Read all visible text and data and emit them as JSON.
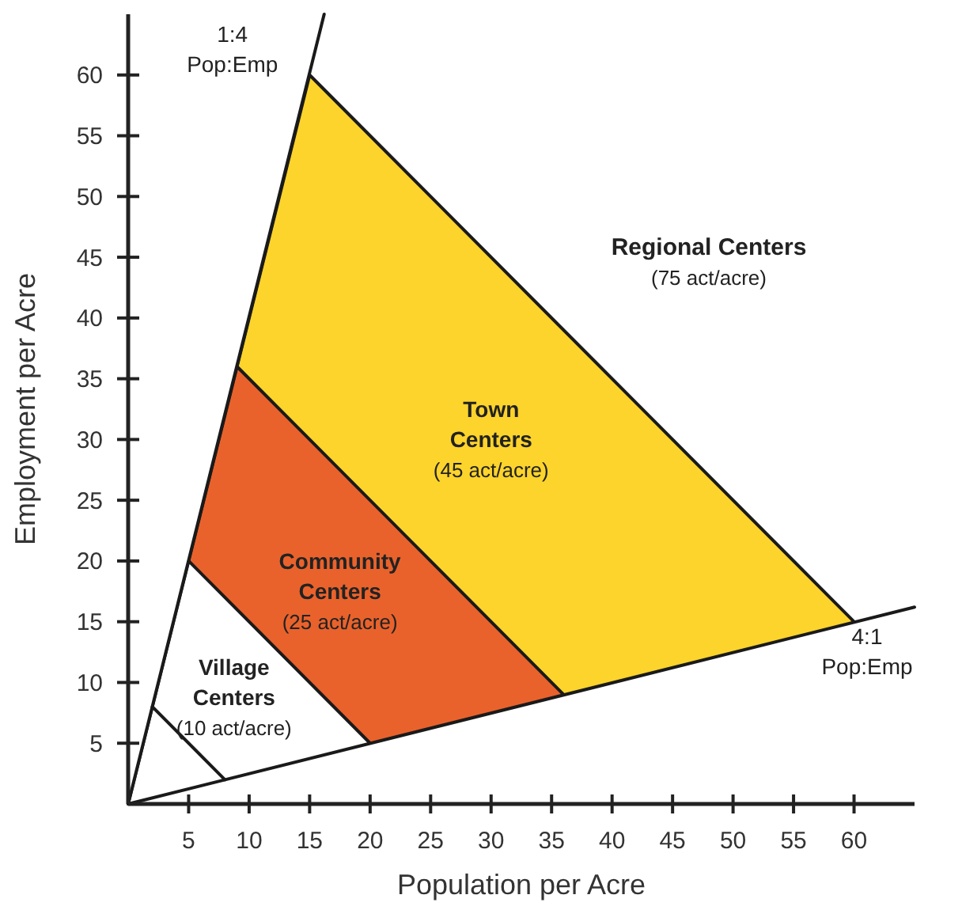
{
  "chart_data": {
    "type": "area",
    "xlabel": "Population per Acre",
    "ylabel": "Employment per Acre",
    "xlim": [
      0,
      65
    ],
    "ylim": [
      0,
      65
    ],
    "xticks": [
      5,
      10,
      15,
      20,
      25,
      30,
      35,
      40,
      45,
      50,
      55,
      60
    ],
    "yticks": [
      5,
      10,
      15,
      20,
      25,
      30,
      35,
      40,
      45,
      50,
      55,
      60
    ],
    "grid": false,
    "series": [
      {
        "name": "Town\nCenters\n(45 act/acre)",
        "color": "#fdd42b",
        "x": [
          0,
          15,
          60
        ],
        "values": [
          0,
          60,
          15
        ]
      },
      {
        "name": "Community\nCenters\n(25 act/acre)",
        "color": "#e9622c",
        "x": [
          0,
          9,
          36
        ],
        "values": [
          0,
          36,
          9
        ]
      },
      {
        "name": "Village\nCenters\n(10 act/acre)",
        "color": "#ffffff",
        "x": [
          0,
          5,
          20
        ],
        "values": [
          0,
          20,
          5
        ]
      },
      {
        "type": "line",
        "color": "#1a1a1a",
        "x": [
          2,
          8
        ],
        "values": [
          8,
          2
        ]
      },
      {
        "type": "line",
        "name": "1:4\nPop:Emp",
        "color": "#1a1a1a",
        "x": [
          0,
          16.2
        ],
        "values": [
          0,
          65
        ]
      },
      {
        "type": "line",
        "name": "4:1\nPop:Emp",
        "color": "#1a1a1a",
        "x": [
          0,
          65
        ],
        "values": [
          0,
          16.2
        ]
      }
    ],
    "annotations": [
      "Regional Centers\n(75 act/acre)"
    ]
  }
}
